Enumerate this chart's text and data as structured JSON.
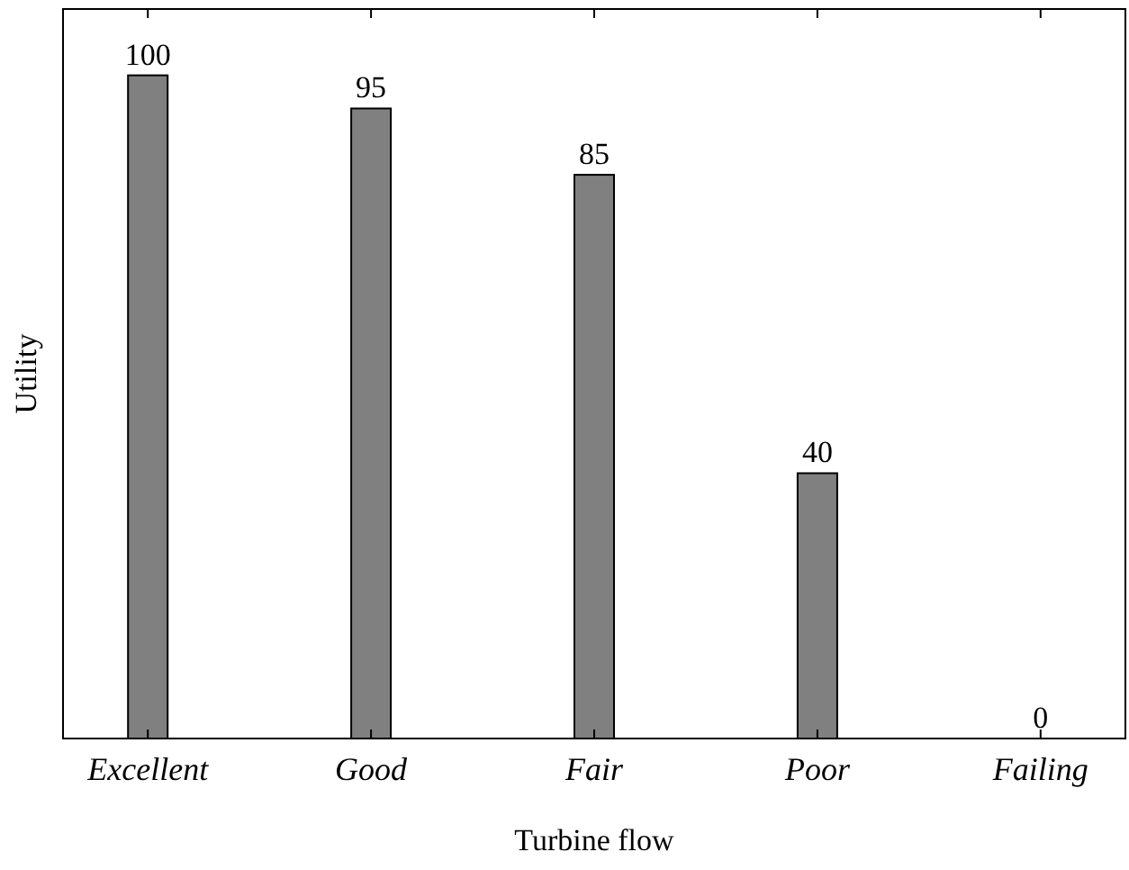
{
  "chart_data": {
    "type": "bar",
    "xlabel": "Turbine flow",
    "ylabel": "Utility",
    "categories": [
      "Excellent",
      "Good",
      "Fair",
      "Poor",
      "Failing"
    ],
    "values": [
      100,
      95,
      85,
      40,
      0
    ],
    "color": "#808080",
    "ylim": [
      0,
      110
    ],
    "data_labels": true,
    "grid": false
  }
}
